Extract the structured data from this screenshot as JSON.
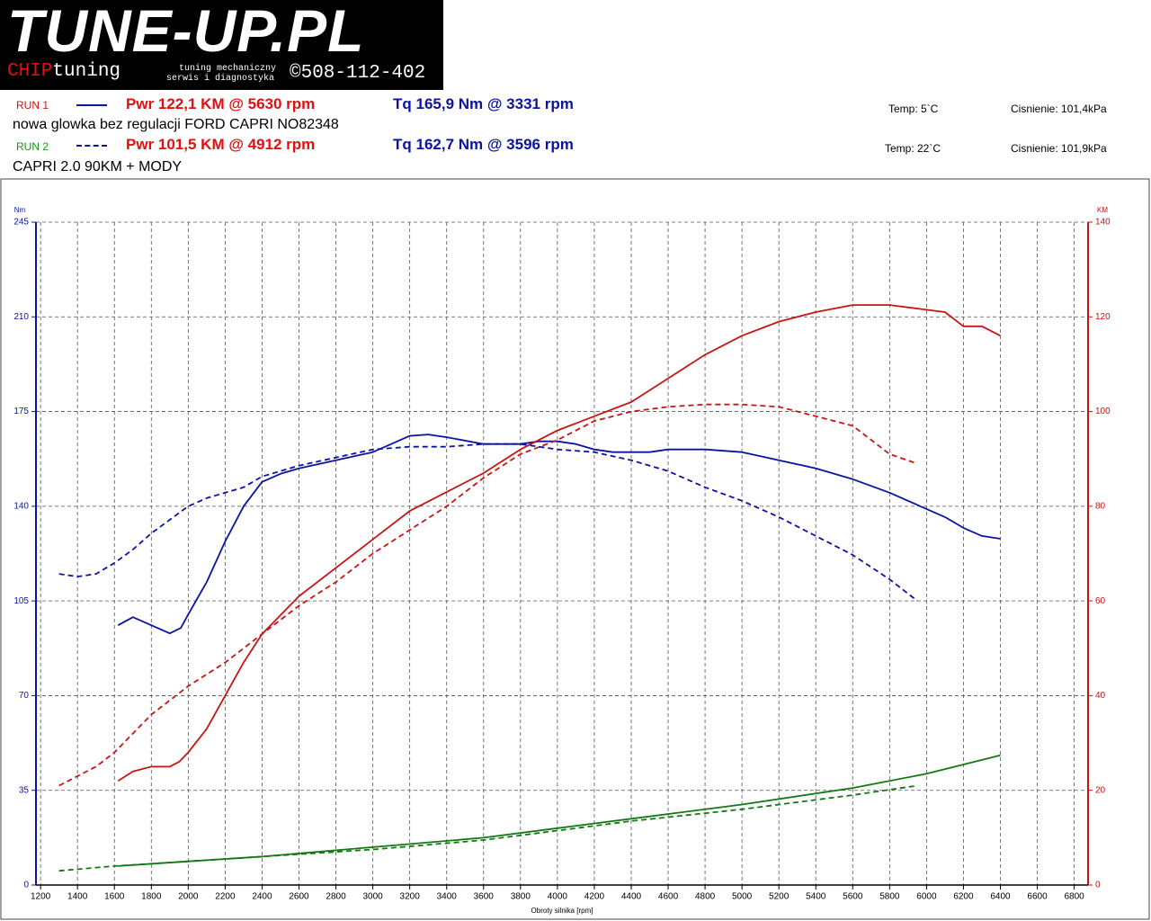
{
  "header": {
    "logo": "TUNE-UP.PL",
    "chip": "CHIP",
    "tuning": "tuning",
    "line1": "tuning mechaniczny",
    "line2": "serwis i diagnostyka",
    "phone": "©508-112-402"
  },
  "runs": [
    {
      "label": "RUN 1",
      "power": "Pwr 122,1 KM @ 5630 rpm",
      "torque": "Tq 165,9 Nm @ 3331 rpm",
      "description": "nowa glowka bez regulacji FORD CAPRI  NO82348",
      "temp": "Temp: 5`C",
      "pressure": "Cisnienie: 101,4kPa"
    },
    {
      "label": "RUN 2",
      "power": "Pwr 101,5 KM @ 4912 rpm",
      "torque": "Tq 162,7 Nm @ 3596 rpm",
      "description": "CAPRI 2.0  90KM + MODY",
      "temp": "Temp: 22`C",
      "pressure": "Cisnienie: 101,9kPa"
    }
  ],
  "chart_data": {
    "type": "line",
    "x_label": "Obroty silnika [rpm]",
    "y_label": "Nm",
    "y2_label": "KM",
    "grid": true,
    "xlim": [
      1175,
      6875
    ],
    "xticks": [
      1200,
      1400,
      1600,
      1800,
      2000,
      2200,
      2400,
      2600,
      2800,
      3000,
      3200,
      3400,
      3600,
      3800,
      4000,
      4200,
      4400,
      4600,
      4800,
      5000,
      5200,
      5400,
      5600,
      5800,
      6000,
      6200,
      6400,
      6600,
      6800
    ],
    "ylim": [
      0,
      245
    ],
    "yticks": [
      0,
      35,
      70,
      105,
      140,
      175,
      210,
      245
    ],
    "y2lim": [
      0,
      140
    ],
    "y2ticks": [
      0,
      20,
      40,
      60,
      80,
      100,
      120,
      140
    ],
    "series": [
      {
        "color": "#0a14a0",
        "dash": false,
        "axis": "y",
        "x": [
          1620,
          1700,
          1800,
          1900,
          1960,
          2000,
          2100,
          2200,
          2300,
          2400,
          2500,
          2600,
          2800,
          3000,
          3100,
          3200,
          3300,
          3400,
          3600,
          3800,
          3900,
          4000,
          4100,
          4200,
          4300,
          4500,
          4600,
          4800,
          5000,
          5200,
          5400,
          5600,
          5800,
          6000,
          6100,
          6200,
          6300,
          6400
        ],
        "values": [
          96,
          99,
          96,
          93,
          95,
          100,
          112,
          127,
          140,
          149,
          152,
          154,
          157,
          160,
          163,
          166,
          166.5,
          165.5,
          163,
          163,
          164,
          164,
          163,
          161,
          160,
          160,
          161,
          161,
          160,
          157,
          154,
          150,
          145,
          139,
          136,
          132,
          129,
          128
        ]
      },
      {
        "color": "#c81414",
        "dash": false,
        "axis": "y2",
        "x": [
          1620,
          1700,
          1800,
          1900,
          1950,
          2000,
          2100,
          2200,
          2300,
          2400,
          2500,
          2600,
          2800,
          3000,
          3200,
          3400,
          3600,
          3800,
          4000,
          4200,
          4400,
          4600,
          4800,
          5000,
          5200,
          5400,
          5600,
          5800,
          6000,
          6100,
          6200,
          6300,
          6400
        ],
        "values": [
          22,
          24,
          25,
          25,
          26,
          28,
          33,
          40,
          47,
          53,
          57,
          61,
          67,
          73,
          79,
          83,
          87,
          92,
          96,
          99,
          102,
          107,
          112,
          116,
          119,
          121,
          122.5,
          122.5,
          121.5,
          121,
          118,
          118,
          116
        ]
      },
      {
        "color": "#0a14a0",
        "dash": true,
        "axis": "y",
        "x": [
          1300,
          1400,
          1500,
          1600,
          1700,
          1800,
          1900,
          2000,
          2100,
          2200,
          2300,
          2400,
          2600,
          2800,
          3000,
          3200,
          3400,
          3600,
          3800,
          4000,
          4200,
          4400,
          4600,
          4800,
          5000,
          5200,
          5400,
          5600,
          5800,
          5950
        ],
        "values": [
          115,
          114,
          115,
          119,
          124,
          130,
          135,
          140,
          143,
          145,
          147,
          151,
          155,
          158,
          161,
          162,
          162,
          163,
          163,
          161,
          160,
          157,
          153,
          147,
          142,
          136,
          129,
          122,
          113,
          105
        ]
      },
      {
        "color": "#c81414",
        "dash": true,
        "axis": "y2",
        "x": [
          1300,
          1400,
          1500,
          1600,
          1700,
          1800,
          1900,
          2000,
          2200,
          2400,
          2600,
          2800,
          3000,
          3200,
          3400,
          3600,
          3800,
          4000,
          4200,
          4400,
          4600,
          4800,
          5000,
          5200,
          5400,
          5600,
          5800,
          5950
        ],
        "values": [
          21,
          23,
          25,
          28,
          32,
          36,
          39,
          42,
          47,
          53,
          59,
          64,
          70,
          75,
          80,
          86,
          91,
          94,
          98,
          100,
          101,
          101.5,
          101.5,
          101,
          99,
          97,
          91,
          89
        ]
      },
      {
        "color": "#147814",
        "dash": false,
        "axis": "y2",
        "x": [
          1620,
          2000,
          2400,
          3000,
          3600,
          4000,
          4400,
          5000,
          5600,
          6000,
          6400
        ],
        "values": [
          4,
          5,
          6,
          8,
          10,
          12,
          14,
          17,
          20.5,
          23.5,
          27.4
        ]
      },
      {
        "color": "#147814",
        "dash": true,
        "axis": "y2",
        "x": [
          1300,
          1600,
          2000,
          2400,
          3000,
          3600,
          4000,
          4400,
          5000,
          5600,
          5950
        ],
        "values": [
          3,
          4,
          5,
          6,
          7.5,
          9.5,
          11.5,
          13.5,
          16,
          19,
          21
        ]
      }
    ]
  }
}
